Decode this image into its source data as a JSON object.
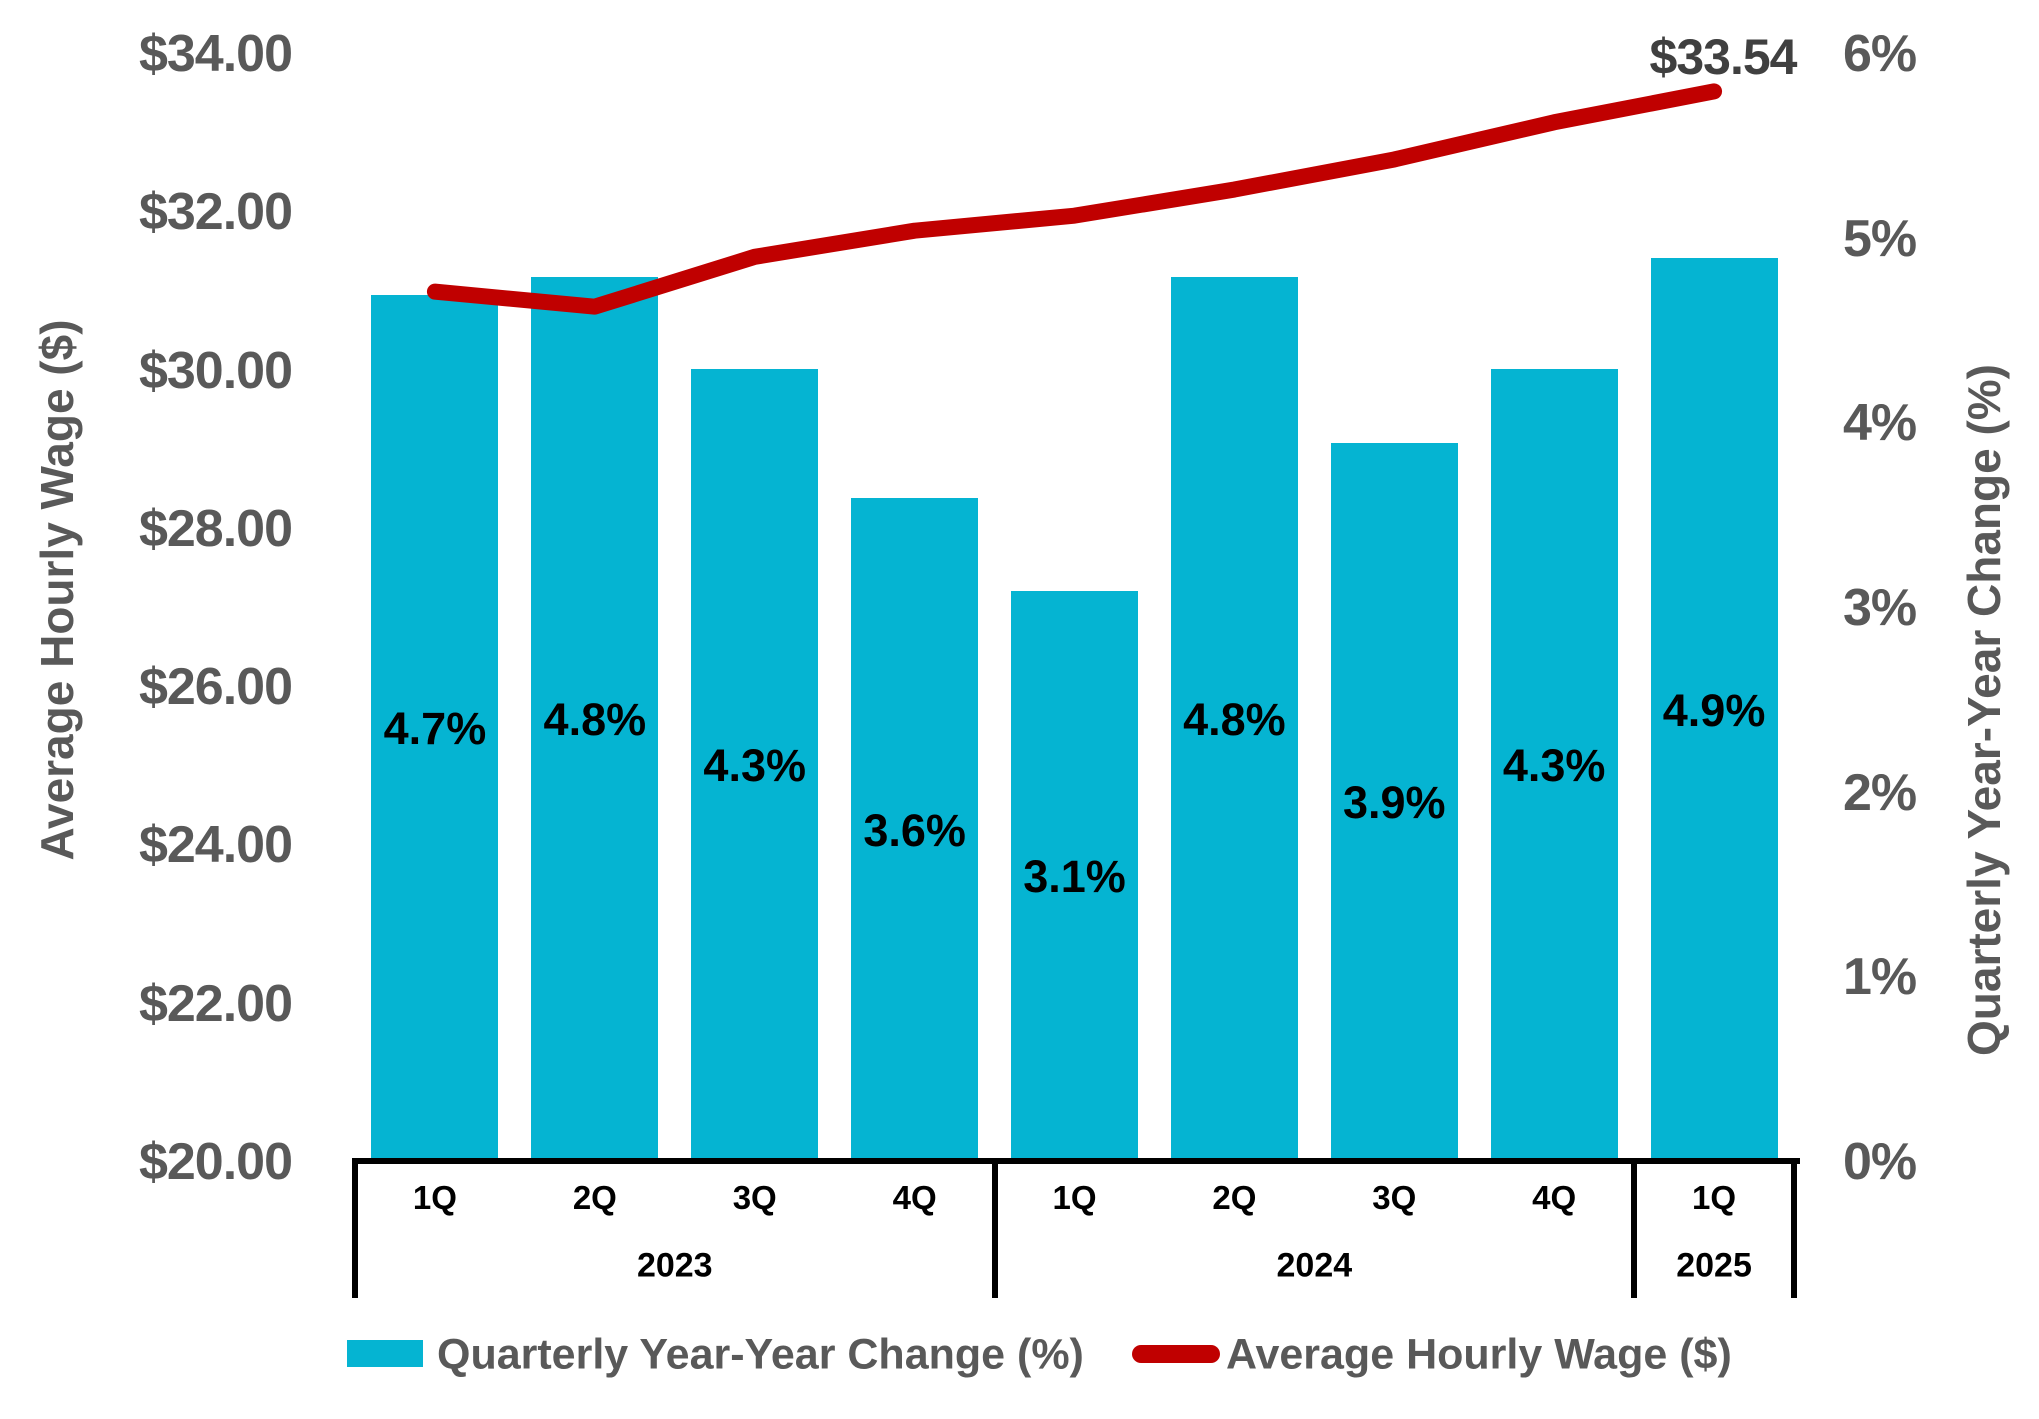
{
  "chart_data": {
    "type": "combo",
    "categories": [
      "1Q 2023",
      "2Q 2023",
      "3Q 2023",
      "4Q 2023",
      "1Q 2024",
      "2Q 2024",
      "3Q 2024",
      "4Q 2024",
      "1Q 2025"
    ],
    "x_axis": {
      "quarter_labels": [
        "1Q",
        "2Q",
        "3Q",
        "4Q",
        "1Q",
        "2Q",
        "3Q",
        "4Q",
        "1Q"
      ],
      "year_groups": [
        {
          "label": "2023",
          "count": 4
        },
        {
          "label": "2024",
          "count": 4
        },
        {
          "label": "2025",
          "count": 1
        }
      ]
    },
    "series": [
      {
        "name": "Quarterly Year-Year Change (%)",
        "type": "bar",
        "axis": "right",
        "color": "#05B4D2",
        "values": [
          4.7,
          4.8,
          4.3,
          3.6,
          3.1,
          4.8,
          3.9,
          4.3,
          4.9
        ],
        "labels": [
          "4.7%",
          "4.8%",
          "4.3%",
          "3.6%",
          "3.1%",
          "4.8%",
          "3.9%",
          "4.3%",
          "4.9%"
        ]
      },
      {
        "name": "Average Hourly Wage ($)",
        "type": "line",
        "axis": "left",
        "color": "#C00000",
        "values": [
          31.01,
          30.82,
          31.45,
          31.78,
          31.97,
          32.3,
          32.68,
          33.15,
          33.54
        ],
        "end_label": "$33.54"
      }
    ],
    "left_axis": {
      "title": "Average Hourly Wage ($)",
      "ticks": [
        "$34.00",
        "$32.00",
        "$30.00",
        "$28.00",
        "$26.00",
        "$24.00",
        "$22.00",
        "$20.00"
      ],
      "tick_values": [
        34,
        32,
        30,
        28,
        26,
        24,
        22,
        20
      ],
      "min": 20,
      "max": 34
    },
    "right_axis": {
      "title": "Quarterly Year-Year Change (%)",
      "ticks": [
        "6%",
        "5%",
        "4%",
        "3%",
        "2%",
        "1%",
        "0%"
      ],
      "tick_values": [
        6,
        5,
        4,
        3,
        2,
        1,
        0
      ],
      "min": 0,
      "max": 6
    },
    "legend": [
      {
        "label": "Quarterly Year-Year Change (%)",
        "swatch": "bar",
        "color": "#05B4D2"
      },
      {
        "label": "Average Hourly Wage ($)",
        "swatch": "line",
        "color": "#C00000"
      }
    ],
    "legend_position": "bottom",
    "grid": false,
    "colors": {
      "bar": "#05B4D2",
      "line": "#C00000",
      "axis_text": "#595959",
      "data_label": "#000000",
      "axis_lines": "#000000"
    }
  }
}
